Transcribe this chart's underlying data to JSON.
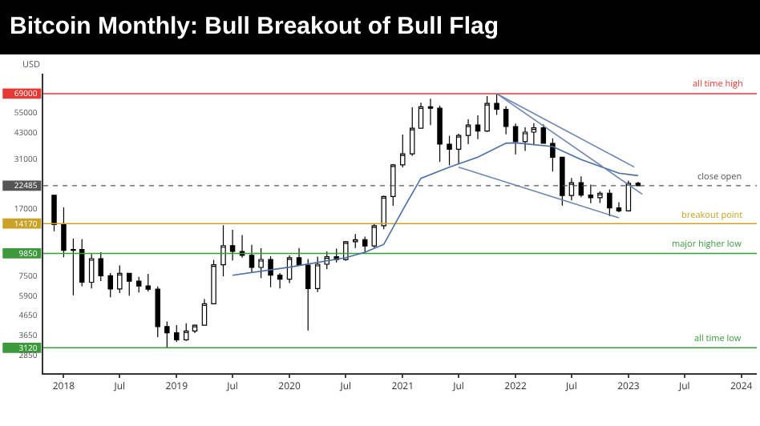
{
  "chart_data": {
    "type": "candlestick",
    "title": "Bitcoin Monthly: Bull Breakout of Bull Flag",
    "ylabel": "USD",
    "color": "#000000",
    "log": true,
    "x": [
      "2017-12",
      "2018-01",
      "2018-02",
      "2018-03",
      "2018-04",
      "2018-05",
      "2018-06",
      "2018-07",
      "2018-08",
      "2018-09",
      "2018-10",
      "2018-11",
      "2018-12",
      "2019-01",
      "2019-02",
      "2019-03",
      "2019-04",
      "2019-05",
      "2019-06",
      "2019-07",
      "2019-08",
      "2019-09",
      "2019-10",
      "2019-11",
      "2019-12",
      "2020-01",
      "2020-02",
      "2020-03",
      "2020-04",
      "2020-05",
      "2020-06",
      "2020-07",
      "2020-08",
      "2020-09",
      "2020-10",
      "2020-11",
      "2020-12",
      "2021-01",
      "2021-02",
      "2021-03",
      "2021-04",
      "2021-05",
      "2021-06",
      "2021-07",
      "2021-08",
      "2021-09",
      "2021-10",
      "2021-11",
      "2021-12",
      "2022-01",
      "2022-02",
      "2022-03",
      "2022-04",
      "2022-05",
      "2022-06",
      "2022-07",
      "2022-08",
      "2022-09",
      "2022-10",
      "2022-11",
      "2022-12",
      "2023-01",
      "2023-02"
    ],
    "ohlc": [
      [
        20000,
        20000,
        12900,
        14000
      ],
      [
        14000,
        17250,
        9400,
        10220
      ],
      [
        10220,
        11790,
        5920,
        10330
      ],
      [
        10330,
        11700,
        6600,
        6930
      ],
      [
        6930,
        9770,
        6430,
        9240
      ],
      [
        9240,
        9990,
        7030,
        7500
      ],
      [
        7500,
        7760,
        5770,
        6390
      ],
      [
        6390,
        8500,
        6080,
        7730
      ],
      [
        7730,
        7760,
        5880,
        7030
      ],
      [
        7030,
        7410,
        6120,
        6630
      ],
      [
        6630,
        7680,
        6200,
        6370
      ],
      [
        6370,
        6590,
        3550,
        4040
      ],
      [
        4040,
        4300,
        3120,
        3740
      ],
      [
        3740,
        4110,
        3350,
        3440
      ],
      [
        3440,
        4200,
        3390,
        3830
      ],
      [
        3830,
        4140,
        3730,
        4110
      ],
      [
        4110,
        5640,
        4080,
        5330
      ],
      [
        5330,
        9100,
        5320,
        8580
      ],
      [
        8580,
        13880,
        7460,
        10830
      ],
      [
        10830,
        13130,
        9050,
        10090
      ],
      [
        10090,
        12330,
        9350,
        9630
      ],
      [
        9630,
        10940,
        7770,
        8300
      ],
      [
        8300,
        10500,
        7300,
        9150
      ],
      [
        9150,
        9510,
        6520,
        7550
      ],
      [
        7550,
        7750,
        6430,
        7200
      ],
      [
        7200,
        9600,
        6860,
        9350
      ],
      [
        9350,
        10520,
        8470,
        8540
      ],
      [
        8540,
        9190,
        3850,
        6420
      ],
      [
        6420,
        9460,
        6150,
        8630
      ],
      [
        8630,
        10080,
        8120,
        9450
      ],
      [
        9450,
        10430,
        8830,
        9140
      ],
      [
        9140,
        11450,
        8990,
        11350
      ],
      [
        11350,
        12470,
        10520,
        11650
      ],
      [
        11650,
        12080,
        9880,
        10780
      ],
      [
        10780,
        14100,
        10530,
        13800
      ],
      [
        13800,
        19940,
        13230,
        19710
      ],
      [
        19710,
        29300,
        17580,
        28990
      ],
      [
        28990,
        41950,
        28130,
        33110
      ],
      [
        33110,
        58350,
        32300,
        45240
      ],
      [
        45240,
        61790,
        45000,
        58800
      ],
      [
        58800,
        64850,
        47000,
        57750
      ],
      [
        57750,
        59600,
        30000,
        37300
      ],
      [
        37300,
        41330,
        28800,
        35040
      ],
      [
        35040,
        42320,
        29280,
        41460
      ],
      [
        41460,
        50500,
        37330,
        47100
      ],
      [
        47100,
        52920,
        39600,
        43790
      ],
      [
        43790,
        67000,
        43280,
        61300
      ],
      [
        61300,
        69000,
        53250,
        57000
      ],
      [
        57000,
        59100,
        42000,
        46220
      ],
      [
        46220,
        47990,
        32920,
        38480
      ],
      [
        38480,
        45800,
        34300,
        43180
      ],
      [
        43180,
        48200,
        37150,
        45530
      ],
      [
        45530,
        47450,
        37600,
        37650
      ],
      [
        37650,
        40000,
        26700,
        31800
      ],
      [
        31800,
        31990,
        17620,
        19930
      ],
      [
        19930,
        24670,
        18780,
        23300
      ],
      [
        23300,
        25200,
        19540,
        20050
      ],
      [
        20050,
        22800,
        18150,
        19420
      ],
      [
        19420,
        20990,
        18200,
        20490
      ],
      [
        20490,
        21450,
        15480,
        17160
      ],
      [
        17160,
        18400,
        16260,
        16540
      ],
      [
        16540,
        23950,
        16500,
        23130
      ],
      [
        23130,
        23600,
        22400,
        22485
      ]
    ],
    "series": [
      {
        "type": "line",
        "color": "#4a6fa5",
        "x": [
          "2019-07",
          "2020-01",
          "2020-07",
          "2020-09",
          "2020-11",
          "2021-01",
          "2021-03",
          "2021-06",
          "2021-09",
          "2021-12",
          "2022-01",
          "2022-05",
          "2022-08",
          "2022-12",
          "2023-02"
        ],
        "values": [
          7550,
          8330,
          9350,
          10000,
          11000,
          16700,
          24600,
          28200,
          31800,
          37700,
          37900,
          36200,
          30900,
          26200,
          25400
        ]
      },
      {
        "type": "line",
        "color": "#6f86b3",
        "x": [
          "2021-11",
          "2023-02-15"
        ],
        "values": [
          69000,
          20250
        ]
      },
      {
        "type": "line",
        "color": "#6f86b3",
        "x": [
          "2021-11",
          "2023-01-20"
        ],
        "values": [
          69000,
          28200
        ]
      },
      {
        "type": "line",
        "color": "#6f86b3",
        "x": [
          "2021-07",
          "2022-12"
        ],
        "values": [
          28200,
          15200
        ]
      }
    ],
    "xlim": [
      "2017-10-27",
      "2024-02-20"
    ],
    "xticks": [
      {
        "value": "2018-01-01",
        "label": "2018"
      },
      {
        "value": "2018-07-01",
        "label": "Jul"
      },
      {
        "value": "2019-01-01",
        "label": "2019"
      },
      {
        "value": "2019-07-01",
        "label": "Jul"
      },
      {
        "value": "2020-01-01",
        "label": "2020"
      },
      {
        "value": "2020-07-01",
        "label": "Jul"
      },
      {
        "value": "2021-01-01",
        "label": "2021"
      },
      {
        "value": "2021-07-01",
        "label": "Jul"
      },
      {
        "value": "2022-01-01",
        "label": "2022"
      },
      {
        "value": "2022-07-01",
        "label": "Jul"
      },
      {
        "value": "2023-01-01",
        "label": "2023"
      },
      {
        "value": "2023-07-01",
        "label": "Jul"
      },
      {
        "value": "2024-01-01",
        "label": "2024"
      }
    ],
    "ylim": [
      2290,
      88000
    ],
    "yticks": [
      2850,
      3120,
      3650,
      4650,
      5900,
      7500,
      9850,
      14170,
      17000,
      22485,
      31000,
      43000,
      55000,
      69000
    ],
    "ref_lines": [
      {
        "axis": "y",
        "value": 69000,
        "label": "all time high",
        "color": "#e53935",
        "line_style": "solid"
      },
      {
        "axis": "y",
        "value": 22485,
        "label": "close open",
        "color": "#555555",
        "line_style": "dotted"
      },
      {
        "axis": "y",
        "value": 14170,
        "label": "breakout point",
        "color": "#c9a227",
        "line_style": "solid"
      },
      {
        "axis": "y",
        "value": 9850,
        "label": "major higher low",
        "color": "#3c9a3c",
        "line_style": "solid"
      },
      {
        "axis": "y",
        "value": 3120,
        "label": "all time low",
        "color": "#3c9a3c",
        "line_style": "solid"
      }
    ],
    "grid": false
  }
}
